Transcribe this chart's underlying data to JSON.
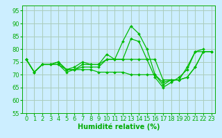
{
  "series": [
    {
      "x": [
        0,
        1,
        2,
        3,
        4,
        5,
        6,
        7,
        8,
        9,
        10,
        11,
        12,
        13,
        14,
        15,
        16,
        17,
        18,
        19,
        20,
        21,
        22,
        23
      ],
      "y": [
        76,
        71,
        74,
        74,
        74,
        72,
        72,
        74,
        74,
        74,
        78,
        76,
        83,
        89,
        86,
        80,
        70,
        66,
        68,
        68,
        73,
        79,
        80,
        null
      ]
    },
    {
      "x": [
        0,
        1,
        2,
        3,
        4,
        5,
        6,
        7,
        8,
        9,
        10,
        11,
        12,
        13,
        14,
        15,
        16,
        17,
        18,
        19,
        20,
        21,
        22,
        23
      ],
      "y": [
        76,
        71,
        74,
        74,
        75,
        72,
        72,
        73,
        73,
        73,
        76,
        76,
        76,
        84,
        83,
        76,
        69,
        65,
        67,
        69,
        72,
        79,
        79,
        null
      ]
    },
    {
      "x": [
        0,
        1,
        2,
        3,
        4,
        5,
        6,
        7,
        8,
        9,
        10,
        11,
        12,
        13,
        14,
        15,
        16,
        17,
        18,
        19,
        20,
        21,
        22,
        23
      ],
      "y": [
        76,
        71,
        74,
        74,
        74,
        71,
        72,
        72,
        72,
        71,
        71,
        71,
        71,
        70,
        70,
        70,
        70,
        67,
        68,
        68,
        69,
        73,
        79,
        79
      ]
    },
    {
      "x": [
        0,
        1,
        2,
        3,
        4,
        5,
        6,
        7,
        8,
        9,
        10,
        11,
        12,
        13,
        14,
        15,
        16,
        17,
        18,
        19,
        20,
        21,
        22,
        23
      ],
      "y": [
        76,
        71,
        74,
        74,
        75,
        72,
        73,
        75,
        74,
        74,
        76,
        76,
        76,
        76,
        76,
        76,
        76,
        68,
        68,
        68,
        69,
        73,
        79,
        79
      ]
    }
  ],
  "line_color": "#00bb00",
  "marker": "D",
  "markersize": 2,
  "linewidth": 0.9,
  "xlabel": "Humidité relative (%)",
  "xlabel_fontsize": 7,
  "xlim": [
    -0.5,
    23.5
  ],
  "ylim": [
    55,
    97
  ],
  "yticks": [
    55,
    60,
    65,
    70,
    75,
    80,
    85,
    90,
    95
  ],
  "xticks": [
    0,
    1,
    2,
    3,
    4,
    5,
    6,
    7,
    8,
    9,
    10,
    11,
    12,
    13,
    14,
    15,
    16,
    17,
    18,
    19,
    20,
    21,
    22,
    23
  ],
  "background_color": "#cceeff",
  "grid_color": "#aaccbb",
  "tick_fontsize": 6,
  "label_color": "#00aa00"
}
